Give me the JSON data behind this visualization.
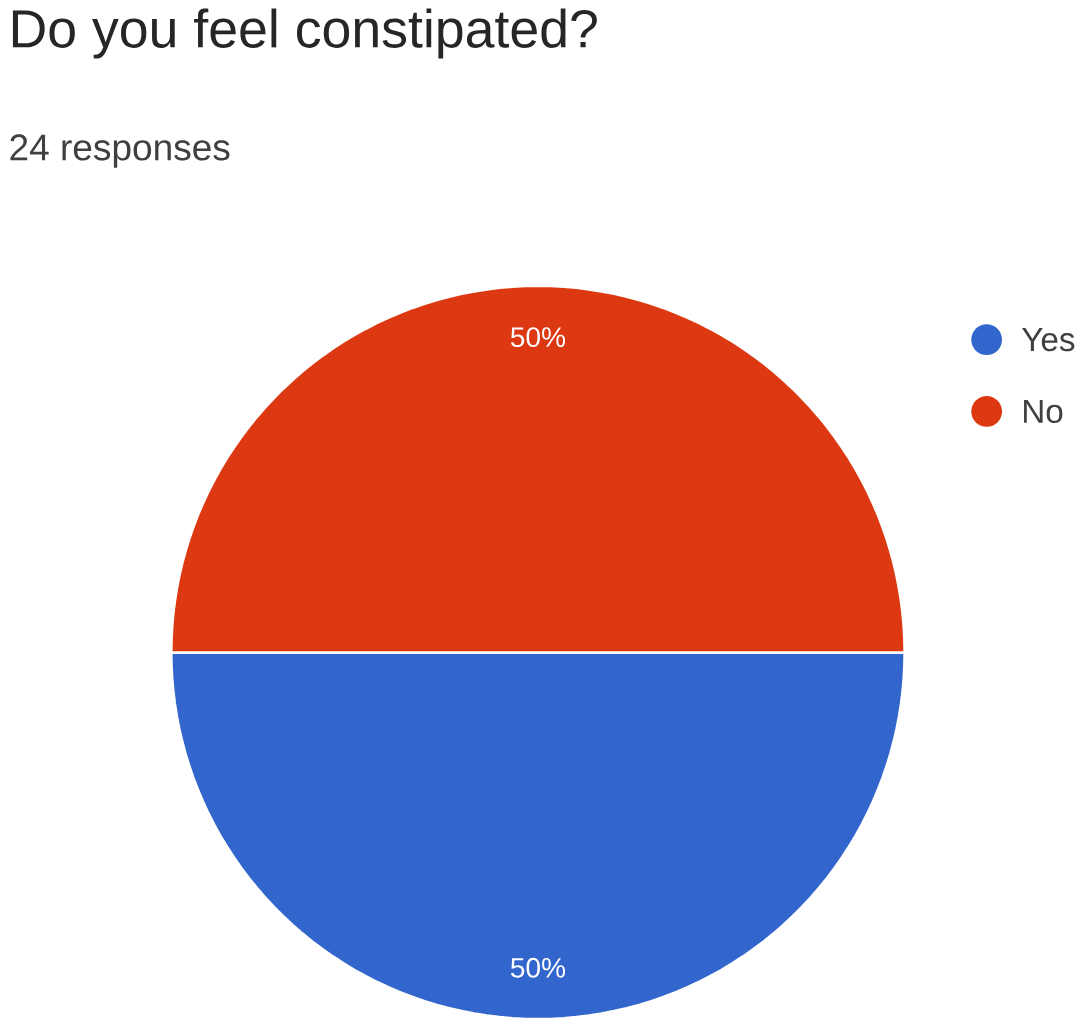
{
  "chart_data": {
    "type": "pie",
    "title": "Do you feel constipated?",
    "subtitle": "24 responses",
    "categories": [
      "Yes",
      "No"
    ],
    "values": [
      50,
      50
    ],
    "colors": [
      "#3366cc",
      "#dc3912"
    ],
    "value_labels": [
      "50%",
      "50%"
    ],
    "legend": "right"
  }
}
